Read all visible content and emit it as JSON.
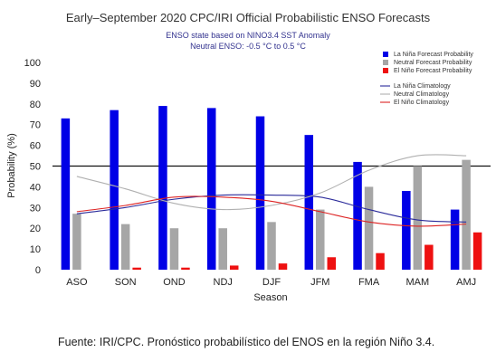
{
  "chart_data": {
    "type": "bar",
    "title": "Early–September 2020 CPC/IRI Official Probabilistic ENSO Forecasts",
    "subtitle_lines": [
      "ENSO state based on NINO3.4 SST Anomaly",
      "Neutral ENSO: -0.5 °C to 0.5 °C"
    ],
    "xlabel": "Season",
    "ylabel": "Probability (%)",
    "ylim": [
      0,
      100
    ],
    "yticks": [
      0,
      10,
      20,
      30,
      40,
      50,
      60,
      70,
      80,
      90,
      100
    ],
    "grid": false,
    "reference_line": 50,
    "legend_position": "top-right",
    "categories": [
      "ASO",
      "SON",
      "OND",
      "NDJ",
      "DJF",
      "JFM",
      "FMA",
      "MAM",
      "AMJ"
    ],
    "series": [
      {
        "name": "La Niña Forecast Probability",
        "kind": "bar",
        "color": "#0000e6",
        "values": [
          73,
          77,
          79,
          78,
          74,
          65,
          52,
          38,
          29
        ]
      },
      {
        "name": "Neutral Forecast Probability",
        "kind": "bar",
        "color": "#a6a6a6",
        "values": [
          27,
          22,
          20,
          20,
          23,
          29,
          40,
          50,
          53
        ]
      },
      {
        "name": "El Niño Forecast Probability",
        "kind": "bar",
        "color": "#ee1111",
        "values": [
          0,
          1,
          1,
          2,
          3,
          6,
          8,
          12,
          18
        ]
      },
      {
        "name": "La Niña Climatology",
        "kind": "line",
        "color": "#2a2a9a",
        "values": [
          27,
          30,
          34,
          36,
          36,
          35,
          29,
          24,
          23
        ]
      },
      {
        "name": "Neutral Climatology",
        "kind": "line",
        "color": "#b0b0b0",
        "values": [
          45,
          39,
          32,
          29,
          31,
          37,
          48,
          55,
          55
        ]
      },
      {
        "name": "El Niño Climatology",
        "kind": "line",
        "color": "#dd2222",
        "values": [
          28,
          31,
          35,
          35,
          33,
          28,
          23,
          21,
          22
        ]
      }
    ]
  },
  "caption": "Fuente: IRI/CPC. Pronóstico probabilístico del ENOS en la región Niño 3.4."
}
